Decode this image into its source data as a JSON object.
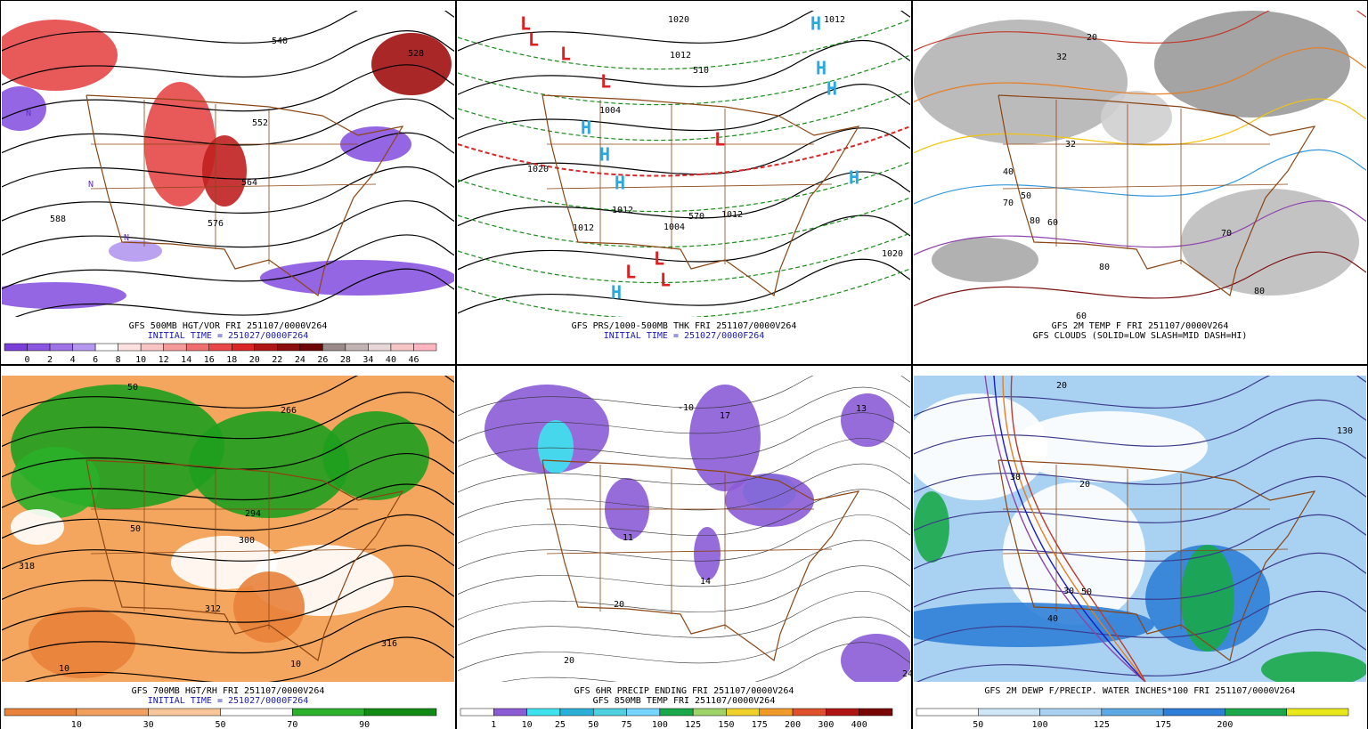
{
  "panels": [
    {
      "caption": [
        "GFS 500MB HGT/VOR FRI 251107/0000V264",
        "INITIAL TIME = 251027/0000F264"
      ],
      "colorbar": [
        0,
        2,
        4,
        6,
        8,
        10,
        12,
        14,
        16,
        18,
        20,
        22,
        24,
        26,
        28,
        34,
        40,
        46
      ],
      "map_labels": [
        540,
        528,
        552,
        564,
        576,
        588,
        "N",
        "N",
        "N"
      ]
    },
    {
      "caption": [
        "GFS PRS/1000-500MB THK FRI 251107/0000V264",
        "INITIAL TIME = 251027/0000F264"
      ],
      "colorbar": [],
      "map_labels": [
        1020,
        1012,
        1012,
        1004,
        1020,
        1012,
        1004,
        1012,
        1012,
        1020,
        570,
        510,
        "L",
        "L",
        "L",
        "L",
        "L",
        "L",
        "L",
        "L",
        "H",
        "H",
        "H",
        "H",
        "H",
        "H",
        "H",
        "H"
      ]
    },
    {
      "caption": [
        "GFS 2M TEMP F FRI 251107/0000V264",
        "GFS CLOUDS (SOLID=LOW SLASH=MID DASH=HI)"
      ],
      "colorbar": [],
      "map_labels": [
        32,
        40,
        50,
        60,
        70,
        80,
        80,
        70,
        80,
        60,
        20,
        32
      ]
    },
    {
      "caption": [
        "GFS 700MB HGT/RH FRI 251107/0000V264",
        "INITIAL TIME = 251027/0000F264"
      ],
      "colorbar": [
        10,
        30,
        50,
        70,
        90
      ],
      "map_labels": [
        318,
        312,
        300,
        294,
        10,
        50,
        10,
        316,
        266,
        50
      ]
    },
    {
      "caption": [
        "GFS 6HR PRECIP ENDING FRI 251107/0000V264",
        "GFS 850MB TEMP FRI 251107/0000V264"
      ],
      "colorbar": [
        1,
        10,
        25,
        50,
        75,
        100,
        125,
        150,
        175,
        200,
        300,
        400
      ],
      "map_labels": [
        20,
        20,
        -10,
        11,
        14,
        24,
        17,
        13
      ]
    },
    {
      "caption": [
        "GFS 2M DEWP F/PRECIP. WATER INCHES*100 FRI 251107/0000V264"
      ],
      "colorbar": [
        50,
        100,
        125,
        175,
        200
      ],
      "map_labels": [
        20,
        30,
        40,
        50,
        130,
        20,
        30
      ]
    }
  ]
}
